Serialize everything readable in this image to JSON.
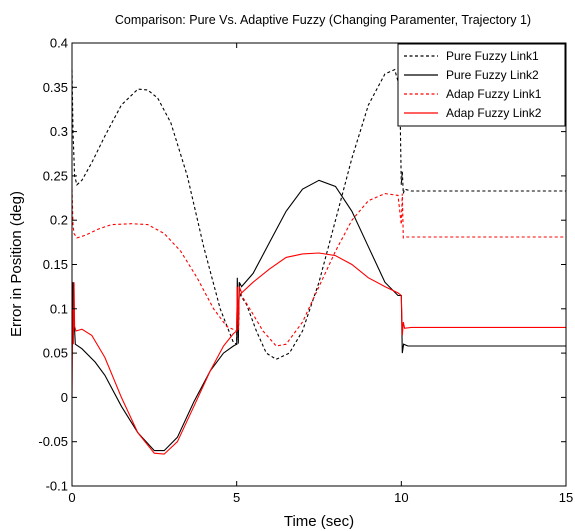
{
  "chart_data": {
    "type": "line",
    "title": "Comparison: Pure Vs. Adaptive Fuzzy (Changing Paramenter, Trajectory 1)",
    "xlabel": "Time (sec)",
    "ylabel": "Error in Position (deg)",
    "xlim": [
      0,
      15
    ],
    "ylim": [
      -0.1,
      0.4
    ],
    "x_ticks": [
      0,
      5,
      10,
      15
    ],
    "x_tick_labels": [
      "0",
      "5",
      "10",
      "15"
    ],
    "y_ticks": [
      -0.1,
      -0.05,
      0,
      0.05,
      0.1,
      0.15,
      0.2,
      0.25,
      0.3,
      0.35,
      0.4
    ],
    "y_tick_labels": [
      "-0.1",
      "-0.05",
      "0",
      "0.05",
      "0.1",
      "0.15",
      "0.2",
      "0.25",
      "0.3",
      "0.35",
      "0.4"
    ],
    "grid": false,
    "legend_position": "top-right",
    "series": [
      {
        "name": "Pure Fuzzy Link1",
        "color": "#000000",
        "dash": "dashed",
        "points": [
          [
            0,
            0.37
          ],
          [
            0.03,
            0.3
          ],
          [
            0.08,
            0.25
          ],
          [
            0.15,
            0.24
          ],
          [
            0.3,
            0.245
          ],
          [
            0.6,
            0.265
          ],
          [
            1.0,
            0.295
          ],
          [
            1.5,
            0.33
          ],
          [
            2.0,
            0.348
          ],
          [
            2.3,
            0.347
          ],
          [
            2.6,
            0.338
          ],
          [
            3.0,
            0.31
          ],
          [
            3.5,
            0.25
          ],
          [
            4.0,
            0.17
          ],
          [
            4.5,
            0.1
          ],
          [
            4.9,
            0.062
          ],
          [
            5.0,
            0.06
          ],
          [
            5.02,
            0.12
          ],
          [
            5.05,
            0.06
          ],
          [
            5.08,
            0.13
          ],
          [
            5.12,
            0.115
          ],
          [
            5.3,
            0.105
          ],
          [
            5.6,
            0.075
          ],
          [
            5.9,
            0.05
          ],
          [
            6.2,
            0.043
          ],
          [
            6.6,
            0.05
          ],
          [
            7.0,
            0.075
          ],
          [
            7.5,
            0.13
          ],
          [
            8.0,
            0.2
          ],
          [
            8.5,
            0.27
          ],
          [
            9.0,
            0.33
          ],
          [
            9.5,
            0.365
          ],
          [
            9.8,
            0.37
          ],
          [
            9.95,
            0.35
          ],
          [
            10.0,
            0.24
          ],
          [
            10.03,
            0.255
          ],
          [
            10.06,
            0.23
          ],
          [
            10.1,
            0.235
          ],
          [
            10.3,
            0.233
          ],
          [
            15,
            0.233
          ]
        ]
      },
      {
        "name": "Pure Fuzzy Link2",
        "color": "#000000",
        "dash": "solid",
        "points": [
          [
            0,
            0.06
          ],
          [
            0.03,
            0.13
          ],
          [
            0.06,
            0.09
          ],
          [
            0.1,
            0.06
          ],
          [
            0.3,
            0.055
          ],
          [
            0.7,
            0.04
          ],
          [
            1.0,
            0.025
          ],
          [
            1.5,
            -0.01
          ],
          [
            2.0,
            -0.04
          ],
          [
            2.5,
            -0.06
          ],
          [
            2.8,
            -0.06
          ],
          [
            3.2,
            -0.045
          ],
          [
            3.7,
            -0.005
          ],
          [
            4.2,
            0.03
          ],
          [
            4.6,
            0.05
          ],
          [
            4.9,
            0.058
          ],
          [
            5.0,
            0.06
          ],
          [
            5.02,
            0.135
          ],
          [
            5.05,
            0.065
          ],
          [
            5.08,
            0.13
          ],
          [
            5.15,
            0.125
          ],
          [
            5.5,
            0.14
          ],
          [
            6.0,
            0.175
          ],
          [
            6.5,
            0.21
          ],
          [
            7.0,
            0.235
          ],
          [
            7.5,
            0.245
          ],
          [
            8.0,
            0.238
          ],
          [
            8.5,
            0.21
          ],
          [
            9.0,
            0.17
          ],
          [
            9.5,
            0.13
          ],
          [
            9.9,
            0.115
          ],
          [
            10.0,
            0.115
          ],
          [
            10.03,
            0.05
          ],
          [
            10.07,
            0.06
          ],
          [
            10.2,
            0.058
          ],
          [
            15,
            0.058
          ]
        ]
      },
      {
        "name": "Adap Fuzzy Link1",
        "color": "#ff0000",
        "dash": "dashed",
        "points": [
          [
            0,
            0.235
          ],
          [
            0.03,
            0.195
          ],
          [
            0.06,
            0.185
          ],
          [
            0.15,
            0.18
          ],
          [
            0.4,
            0.183
          ],
          [
            0.8,
            0.19
          ],
          [
            1.2,
            0.195
          ],
          [
            1.8,
            0.196
          ],
          [
            2.3,
            0.195
          ],
          [
            2.8,
            0.185
          ],
          [
            3.3,
            0.165
          ],
          [
            3.8,
            0.135
          ],
          [
            4.3,
            0.1
          ],
          [
            4.7,
            0.08
          ],
          [
            5.0,
            0.075
          ],
          [
            5.02,
            0.12
          ],
          [
            5.05,
            0.075
          ],
          [
            5.08,
            0.125
          ],
          [
            5.15,
            0.115
          ],
          [
            5.4,
            0.1
          ],
          [
            5.8,
            0.075
          ],
          [
            6.2,
            0.058
          ],
          [
            6.5,
            0.06
          ],
          [
            7.0,
            0.085
          ],
          [
            7.5,
            0.125
          ],
          [
            8.0,
            0.165
          ],
          [
            8.5,
            0.2
          ],
          [
            9.0,
            0.222
          ],
          [
            9.5,
            0.23
          ],
          [
            9.9,
            0.228
          ],
          [
            10.0,
            0.195
          ],
          [
            10.03,
            0.23
          ],
          [
            10.06,
            0.18
          ],
          [
            10.15,
            0.181
          ],
          [
            15,
            0.181
          ]
        ]
      },
      {
        "name": "Adap Fuzzy Link2",
        "color": "#ff0000",
        "dash": "solid",
        "points": [
          [
            0,
            0.0
          ],
          [
            0.02,
            0.1
          ],
          [
            0.04,
            0.06
          ],
          [
            0.06,
            0.13
          ],
          [
            0.08,
            0.08
          ],
          [
            0.12,
            0.075
          ],
          [
            0.3,
            0.077
          ],
          [
            0.6,
            0.07
          ],
          [
            1.0,
            0.045
          ],
          [
            1.5,
            0.0
          ],
          [
            2.0,
            -0.04
          ],
          [
            2.5,
            -0.063
          ],
          [
            2.8,
            -0.064
          ],
          [
            3.2,
            -0.05
          ],
          [
            3.7,
            -0.01
          ],
          [
            4.2,
            0.03
          ],
          [
            4.6,
            0.058
          ],
          [
            4.9,
            0.072
          ],
          [
            5.0,
            0.075
          ],
          [
            5.02,
            0.125
          ],
          [
            5.05,
            0.08
          ],
          [
            5.08,
            0.125
          ],
          [
            5.15,
            0.118
          ],
          [
            5.5,
            0.13
          ],
          [
            6.0,
            0.145
          ],
          [
            6.5,
            0.158
          ],
          [
            7.0,
            0.162
          ],
          [
            7.5,
            0.163
          ],
          [
            8.0,
            0.16
          ],
          [
            8.5,
            0.15
          ],
          [
            9.0,
            0.135
          ],
          [
            9.5,
            0.125
          ],
          [
            9.9,
            0.118
          ],
          [
            10.0,
            0.115
          ],
          [
            10.03,
            0.07
          ],
          [
            10.06,
            0.085
          ],
          [
            10.1,
            0.078
          ],
          [
            10.3,
            0.079
          ],
          [
            15,
            0.079
          ]
        ]
      }
    ]
  }
}
